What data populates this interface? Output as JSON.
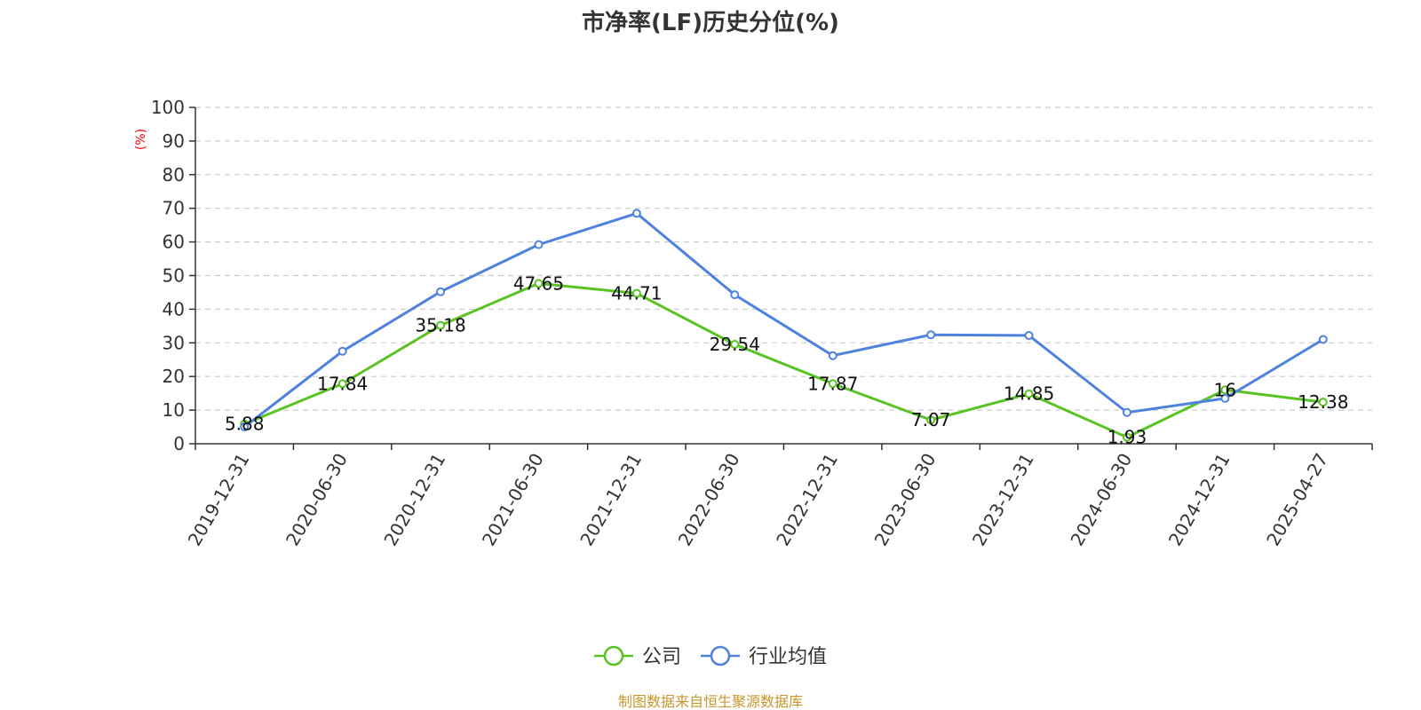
{
  "chart_data": {
    "type": "line",
    "title": "市净率(LF)历史分位(%)",
    "y_unit_label": "(%)",
    "ylim": [
      0,
      100
    ],
    "y_ticks": [
      0,
      10,
      20,
      30,
      40,
      50,
      60,
      70,
      80,
      90,
      100
    ],
    "grid": true,
    "legend_position": "bottom-center",
    "categories": [
      "2019-12-31",
      "2020-06-30",
      "2020-12-31",
      "2021-06-30",
      "2021-12-31",
      "2022-06-30",
      "2022-12-31",
      "2023-06-30",
      "2023-12-31",
      "2024-06-30",
      "2024-12-31",
      "2025-04-27"
    ],
    "series": [
      {
        "name": "公司",
        "color": "#58c322",
        "show_labels": true,
        "values": [
          5.88,
          17.84,
          35.18,
          47.65,
          44.71,
          29.54,
          17.87,
          7.07,
          14.85,
          1.93,
          16,
          12.38
        ]
      },
      {
        "name": "行业均值",
        "color": "#4f82dc",
        "show_labels": false,
        "values": [
          5,
          27.5,
          45.2,
          59.2,
          68.5,
          44.3,
          26.2,
          32.4,
          32.2,
          9.3,
          13.5,
          31
        ]
      }
    ],
    "source": "制图数据来自恒生聚源数据库",
    "source_color": "#c8962d"
  }
}
